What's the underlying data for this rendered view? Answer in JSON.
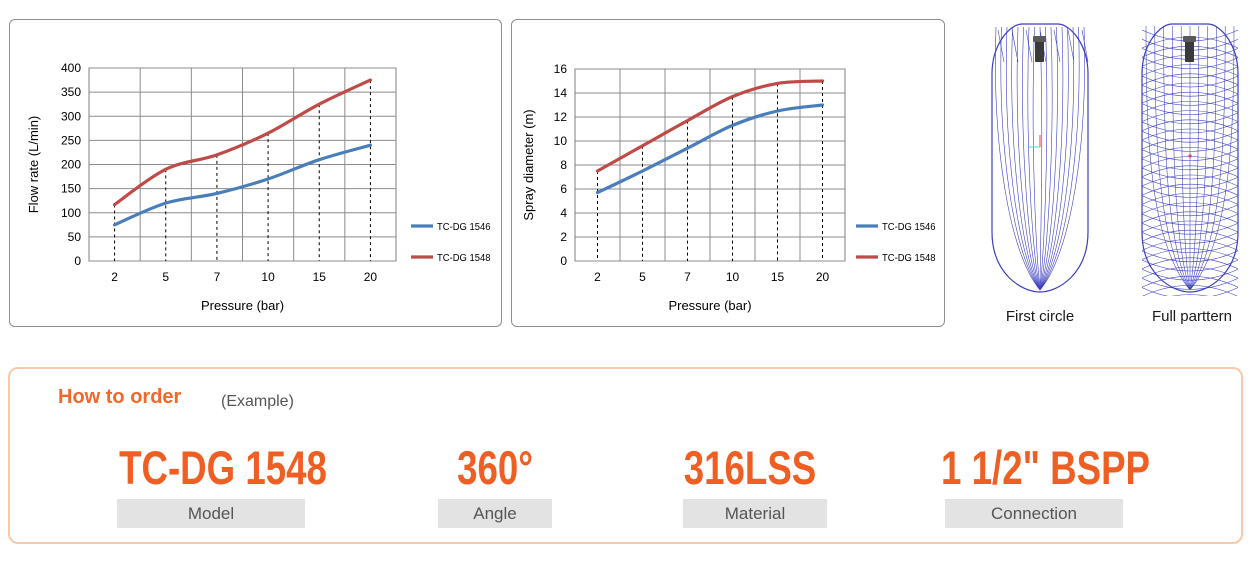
{
  "chart_data": [
    {
      "type": "line",
      "title": "",
      "xlabel": "Pressure (bar)",
      "ylabel": "Flow rate (L/min)",
      "categories": [
        "2",
        "5",
        "7",
        "10",
        "15",
        "20"
      ],
      "ylim": [
        0,
        400
      ],
      "yticks": [
        "0",
        "50",
        "100",
        "150",
        "200",
        "250",
        "300",
        "350",
        "400"
      ],
      "grid": true,
      "legend": "right",
      "series": [
        {
          "name": "TC-DG 1546",
          "color": "#4a7ebb",
          "values": [
            75,
            120,
            140,
            170,
            210,
            240
          ]
        },
        {
          "name": "TC-DG 1548",
          "color": "#be4b48",
          "values": [
            117,
            190,
            220,
            265,
            325,
            375
          ]
        }
      ]
    },
    {
      "type": "line",
      "title": "",
      "xlabel": "Pressure (bar)",
      "ylabel": "Spray diameter (m)",
      "categories": [
        "2",
        "5",
        "7",
        "10",
        "15",
        "20"
      ],
      "ylim": [
        0,
        16
      ],
      "yticks": [
        "0",
        "2",
        "4",
        "6",
        "8",
        "10",
        "12",
        "14",
        "16"
      ],
      "grid": true,
      "legend": "right",
      "series": [
        {
          "name": "TC-DG 1546",
          "color": "#4a7ebb",
          "values": [
            5.7,
            7.5,
            9.4,
            11.3,
            12.5,
            13.0
          ]
        },
        {
          "name": "TC-DG 1548",
          "color": "#be4b48",
          "values": [
            7.5,
            9.6,
            11.7,
            13.7,
            14.8,
            15.0
          ]
        }
      ]
    }
  ],
  "patterns": {
    "first_caption": "First circle",
    "full_caption": "Full parttern",
    "line_color": "#3b3fbf"
  },
  "order": {
    "title": "How to order",
    "subtitle": "(Example)",
    "accent_color": "#ef5f24",
    "specs": [
      {
        "value": "TC-DG 1548",
        "label": "Model"
      },
      {
        "value": "360°",
        "label": "Angle"
      },
      {
        "value": "316LSS",
        "label": "Material"
      },
      {
        "value": "1 1/2\" BSPP",
        "label": "Connection"
      }
    ]
  }
}
